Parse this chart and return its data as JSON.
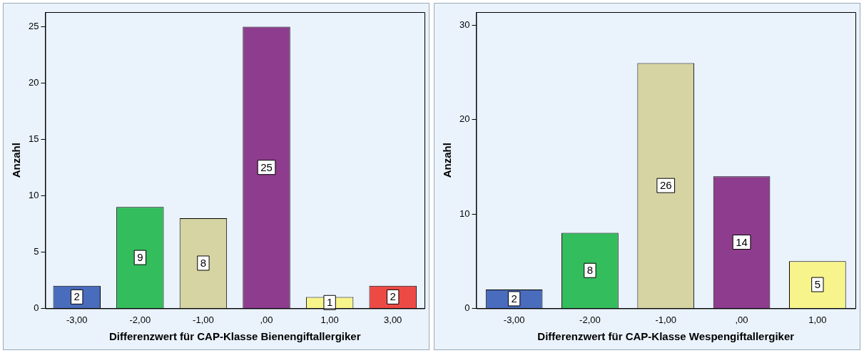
{
  "chart_data": [
    {
      "type": "bar",
      "xlabel": "Differenzwert für CAP-Klasse Bienengiftallergiker",
      "ylabel": "Anzahl",
      "categories": [
        "-3,00",
        "-2,00",
        "-1,00",
        ",00",
        "1,00",
        "3,00"
      ],
      "values": [
        2,
        9,
        8,
        25,
        1,
        2
      ],
      "colors": [
        "#4a6cbc",
        "#33bd5c",
        "#d7d4a4",
        "#8e3c8d",
        "#f7f48c",
        "#ee4a45"
      ],
      "ylim": [
        0,
        26.3
      ],
      "yticks": [
        0,
        5,
        10,
        15,
        20,
        25
      ],
      "data_labels": true,
      "grid": false,
      "legend": false
    },
    {
      "type": "bar",
      "xlabel": "Differenzwert für CAP-Klasse Wespengiftallergiker",
      "ylabel": "Anzahl",
      "categories": [
        "-3,00",
        "-2,00",
        "-1,00",
        ",00",
        "1,00"
      ],
      "values": [
        2,
        8,
        26,
        14,
        5
      ],
      "colors": [
        "#4a6cbc",
        "#33bd5c",
        "#d7d4a4",
        "#8e3c8d",
        "#f7f48c"
      ],
      "ylim": [
        0,
        31.4
      ],
      "yticks": [
        0,
        10,
        20,
        30
      ],
      "data_labels": true,
      "grid": false,
      "legend": false
    }
  ]
}
